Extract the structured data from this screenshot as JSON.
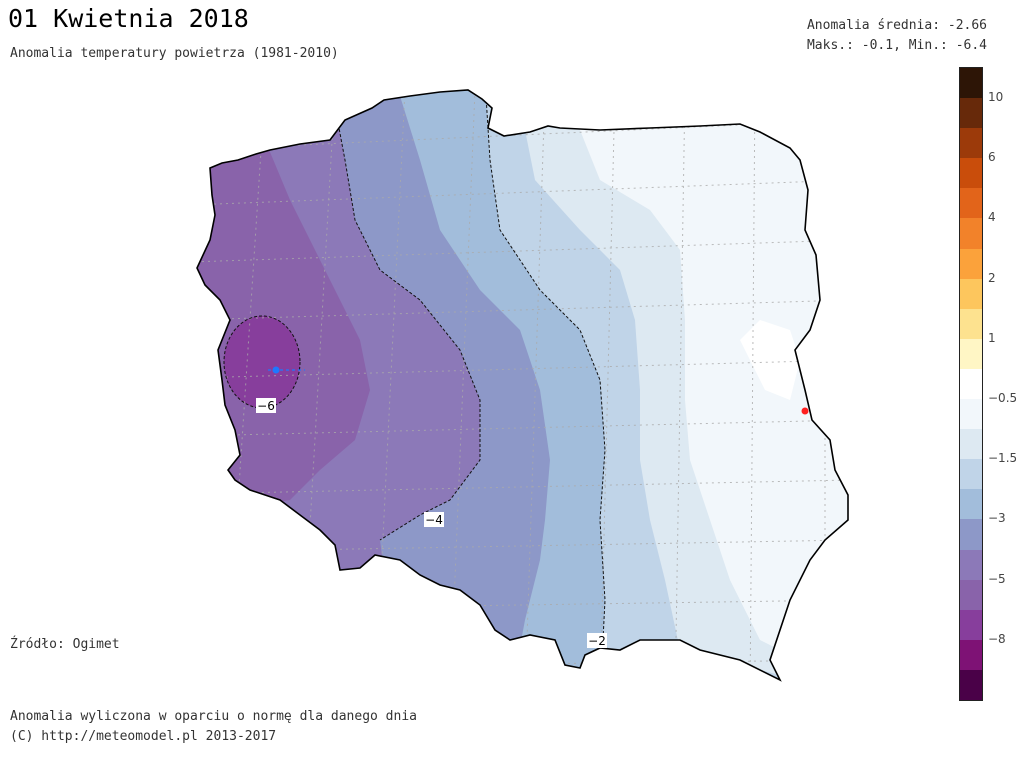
{
  "title": "01 Kwietnia 2018",
  "subtitle": "Anomalia temperatury powietrza (1981-2010)",
  "stats": {
    "mean_line": "Anomalia średnia: -2.66",
    "maxmin_line": "Maks.: -0.1, Min.: -6.4"
  },
  "source": "Źródło: Ogimet",
  "footer": {
    "line1": "Anomalia wyliczona w oparciu o normę dla danego dnia",
    "line2": "(C) http://meteomodel.pl 2013-2017"
  },
  "contour_labels": {
    "c6": "−6",
    "c4": "−4",
    "c2": "−2"
  },
  "colorbar": {
    "colors": [
      "#2d1506",
      "#67290a",
      "#9c3a0a",
      "#c94d0b",
      "#e2641a",
      "#f2822a",
      "#fba23b",
      "#fdc65d",
      "#fde28f",
      "#fff6c5",
      "#ffffff",
      "#f2f7fb",
      "#dde9f2",
      "#c0d4e8",
      "#a2bddb",
      "#8d98c8",
      "#8c79b8",
      "#8963aa",
      "#873e9c",
      "#7e1275",
      "#4a0148"
    ],
    "labels": [
      "10",
      "6",
      "4",
      "2",
      "1",
      "−0.5",
      "−1.5",
      "−3",
      "−5",
      "−8"
    ],
    "label_rows": [
      1,
      3,
      5,
      7,
      9,
      11,
      13,
      15,
      17,
      19
    ]
  },
  "markers": {
    "min_color": "#1e78ff",
    "max_color": "#ff2020"
  }
}
